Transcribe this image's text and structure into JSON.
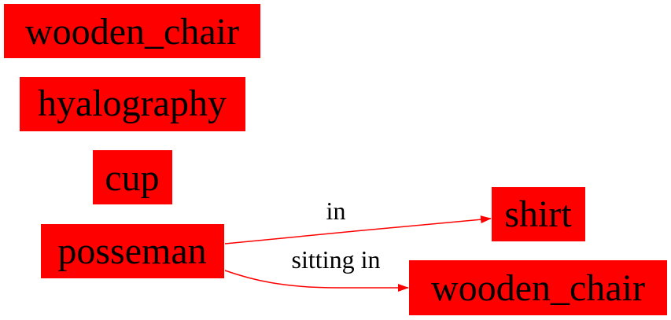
{
  "colors": {
    "node_fill": "#ff0000",
    "edge": "#ff0000",
    "text": "#000000",
    "background": "#ffffff"
  },
  "nodes": {
    "wooden_chair_1": "wooden_chair",
    "hyalography": "hyalography",
    "cup": "cup",
    "posseman": "posseman",
    "shirt": "shirt",
    "wooden_chair_2": "wooden_chair"
  },
  "edges": {
    "posseman_shirt": {
      "from": "posseman",
      "to": "shirt",
      "label": "in"
    },
    "posseman_wooden_chair": {
      "from": "posseman",
      "to": "wooden_chair",
      "label": "sitting in"
    }
  }
}
